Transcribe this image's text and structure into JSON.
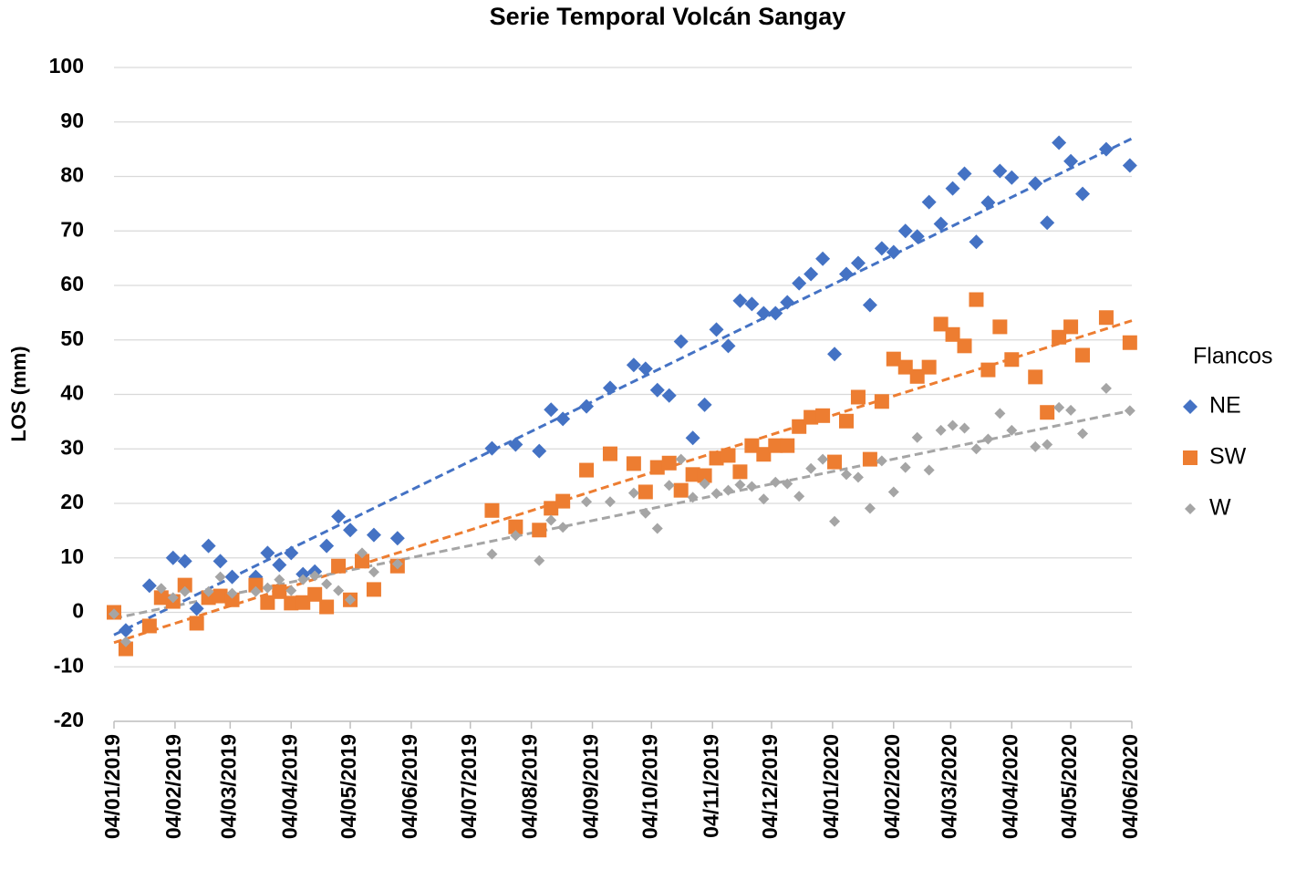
{
  "chart_data": {
    "type": "scatter",
    "title": "Serie Temporal Volcán Sangay",
    "y_label": "LOS (mm)",
    "legend_title": "Flancos",
    "legend": "right",
    "grid": true,
    "trendline": true,
    "ylim": [
      -20,
      100
    ],
    "yticks": [
      -20,
      -10,
      0,
      10,
      20,
      30,
      40,
      50,
      60,
      70,
      80,
      90,
      100
    ],
    "xlim": [
      "04/01/2019",
      "04/06/2020"
    ],
    "xticks": [
      "04/01/2019",
      "04/02/2019",
      "04/03/2019",
      "04/04/2019",
      "04/05/2019",
      "04/06/2019",
      "04/07/2019",
      "04/08/2019",
      "04/09/2019",
      "04/10/2019",
      "04/11/2019",
      "04/12/2019",
      "04/01/2020",
      "04/02/2020",
      "04/03/2020",
      "04/04/2020",
      "04/05/2020",
      "04/06/2020"
    ],
    "x": [
      "04/01/2019",
      "10/01/2019",
      "22/01/2019",
      "28/01/2019",
      "03/02/2019",
      "09/02/2019",
      "15/02/2019",
      "21/02/2019",
      "27/02/2019",
      "05/03/2019",
      "17/03/2019",
      "23/03/2019",
      "29/03/2019",
      "04/04/2019",
      "10/04/2019",
      "16/04/2019",
      "22/04/2019",
      "28/04/2019",
      "04/05/2019",
      "10/05/2019",
      "16/05/2019",
      "28/05/2019",
      "15/07/2019",
      "27/07/2019",
      "08/08/2019",
      "14/08/2019",
      "20/08/2019",
      "01/09/2019",
      "13/09/2019",
      "25/09/2019",
      "01/10/2019",
      "07/10/2019",
      "13/10/2019",
      "19/10/2019",
      "25/10/2019",
      "31/10/2019",
      "06/11/2019",
      "12/11/2019",
      "18/11/2019",
      "24/11/2019",
      "30/11/2019",
      "06/12/2019",
      "12/12/2019",
      "18/12/2019",
      "24/12/2019",
      "30/12/2019",
      "05/01/2020",
      "11/01/2020",
      "17/01/2020",
      "23/01/2020",
      "29/01/2020",
      "04/02/2020",
      "10/02/2020",
      "16/02/2020",
      "22/02/2020",
      "28/02/2020",
      "05/03/2020",
      "11/03/2020",
      "17/03/2020",
      "23/03/2020",
      "29/03/2020",
      "04/04/2020",
      "16/04/2020",
      "22/04/2020",
      "28/04/2020",
      "04/05/2020",
      "10/05/2020",
      "22/05/2020",
      "03/06/2020"
    ],
    "series": [
      {
        "name": "NE",
        "color": "#4472c4",
        "marker": "diamond",
        "values": [
          null,
          -3.3,
          4.9,
          null,
          10.0,
          9.4,
          0.7,
          12.2,
          9.4,
          6.5,
          6.5,
          10.9,
          8.7,
          10.9,
          7.0,
          7.5,
          12.2,
          17.6,
          15.1,
          null,
          14.2,
          13.6,
          30.1,
          30.8,
          29.6,
          37.2,
          35.5,
          37.8,
          41.2,
          45.4,
          44.7,
          40.8,
          39.8,
          49.7,
          32.0,
          38.1,
          51.9,
          48.9,
          57.2,
          56.6,
          54.9,
          54.9,
          56.9,
          60.4,
          62.1,
          64.9,
          47.4,
          62.1,
          64.1,
          56.4,
          66.8,
          66.1,
          70.0,
          69.0,
          75.3,
          71.3,
          77.8,
          80.5,
          68.0,
          75.2,
          81.0,
          79.8,
          78.7,
          71.5,
          86.2,
          82.8,
          76.8,
          85.0,
          82.0
        ]
      },
      {
        "name": "SW",
        "color": "#ed7d31",
        "marker": "square",
        "values": [
          0,
          -6.7,
          -2.5,
          2.7,
          2.0,
          5.0,
          -2.0,
          2.7,
          3.0,
          2.3,
          5.0,
          1.8,
          3.8,
          1.7,
          1.8,
          3.3,
          1.0,
          8.5,
          2.3,
          9.4,
          4.2,
          8.5,
          18.7,
          15.7,
          15.1,
          19.1,
          20.4,
          26.1,
          29.1,
          27.3,
          22.1,
          26.6,
          27.4,
          22.4,
          25.3,
          25.1,
          28.3,
          28.8,
          25.8,
          30.6,
          29.0,
          30.6,
          30.6,
          34.1,
          35.8,
          36.1,
          27.6,
          35.1,
          39.5,
          28.1,
          38.7,
          46.5,
          45.0,
          43.3,
          45.0,
          52.9,
          51.0,
          48.9,
          57.4,
          44.5,
          52.4,
          46.4,
          43.2,
          36.7,
          50.5,
          52.4,
          47.2,
          54.1,
          49.5
        ]
      },
      {
        "name": "W",
        "color": "#a5a5a5",
        "marker": "small-diamond",
        "values": [
          -0.3,
          -5.4,
          null,
          4.4,
          2.7,
          3.8,
          null,
          3.8,
          6.5,
          3.5,
          3.8,
          4.5,
          6.0,
          4.0,
          6.0,
          6.7,
          5.2,
          4.0,
          2.3,
          10.9,
          7.4,
          8.9,
          10.7,
          14.1,
          9.5,
          16.9,
          15.6,
          20.3,
          20.3,
          21.9,
          18.2,
          15.4,
          23.3,
          28.1,
          21.1,
          23.6,
          21.8,
          22.4,
          23.4,
          23.1,
          20.8,
          23.9,
          23.6,
          21.3,
          26.4,
          28.1,
          16.7,
          25.3,
          24.8,
          19.1,
          27.8,
          22.1,
          26.6,
          32.1,
          26.1,
          33.4,
          34.3,
          33.8,
          30.0,
          31.8,
          36.5,
          33.4,
          30.4,
          30.8,
          37.6,
          37.1,
          32.8,
          41.1,
          37.0
        ]
      }
    ]
  }
}
